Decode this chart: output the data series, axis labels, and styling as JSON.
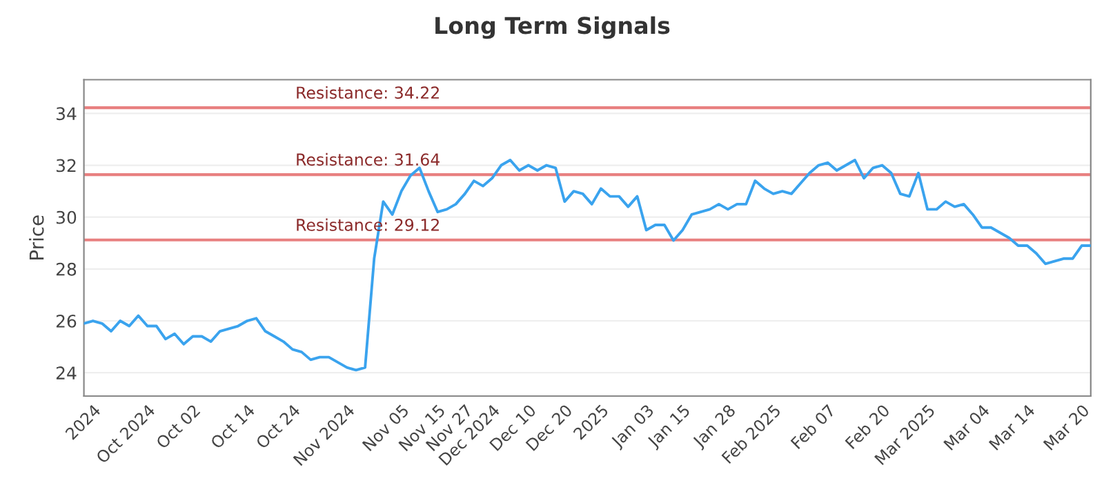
{
  "chart_data": {
    "type": "line",
    "title": "Long Term Signals",
    "ylabel": "Price",
    "categories": [
      null,
      "2024",
      null,
      null,
      null,
      null,
      null,
      "Oct 2024",
      null,
      null,
      null,
      null,
      "Oct 02",
      null,
      null,
      null,
      null,
      null,
      "Oct 14",
      null,
      null,
      null,
      null,
      "Oct 24",
      null,
      null,
      null,
      null,
      null,
      "Nov 2024",
      null,
      null,
      null,
      null,
      null,
      "Nov 05",
      null,
      null,
      null,
      "Nov 15",
      null,
      null,
      "Nov 27",
      null,
      null,
      "Dec 2024",
      null,
      null,
      null,
      "Dec 10",
      null,
      null,
      null,
      "Dec 20",
      null,
      null,
      null,
      "2025",
      null,
      null,
      null,
      null,
      "Jan 03",
      null,
      null,
      null,
      "Jan 15",
      null,
      null,
      null,
      null,
      "Jan 28",
      null,
      null,
      null,
      null,
      "Feb 2025",
      null,
      null,
      null,
      null,
      null,
      "Feb 07",
      null,
      null,
      null,
      null,
      null,
      "Feb 20",
      null,
      null,
      null,
      null,
      "Mar 2025",
      null,
      null,
      null,
      null,
      null,
      "Mar 04",
      null,
      null,
      null,
      null,
      "Mar 14",
      null,
      null,
      null,
      null,
      null,
      "Mar 20",
      null
    ],
    "series": [
      {
        "color": "#3aa3ee",
        "values": [
          25.9,
          26.0,
          25.9,
          25.6,
          26.0,
          25.8,
          26.2,
          25.8,
          25.8,
          25.3,
          25.5,
          25.1,
          25.4,
          25.4,
          25.2,
          25.6,
          25.7,
          25.8,
          26.0,
          26.1,
          25.6,
          25.4,
          25.2,
          24.9,
          24.8,
          24.5,
          24.6,
          24.6,
          24.4,
          24.2,
          24.1,
          24.2,
          28.4,
          30.6,
          30.1,
          31.0,
          31.6,
          31.9,
          31.0,
          30.2,
          30.3,
          30.5,
          30.9,
          31.4,
          31.2,
          31.5,
          32.0,
          32.2,
          31.8,
          32.0,
          31.8,
          32.0,
          31.9,
          30.6,
          31.0,
          30.9,
          30.5,
          31.1,
          30.8,
          30.8,
          30.4,
          30.8,
          29.5,
          29.7,
          29.7,
          29.1,
          29.5,
          30.1,
          30.2,
          30.3,
          30.5,
          30.3,
          30.5,
          30.5,
          31.4,
          31.1,
          30.9,
          31.0,
          30.9,
          31.3,
          31.7,
          32.0,
          32.1,
          31.8,
          32.0,
          32.2,
          31.5,
          31.9,
          32.0,
          31.7,
          30.9,
          30.8,
          31.7,
          30.3,
          30.3,
          30.6,
          30.4,
          30.5,
          30.1,
          29.6,
          29.6,
          29.4,
          29.2,
          28.9,
          28.9,
          28.6,
          28.2,
          28.3,
          28.4,
          28.4,
          28.9,
          28.9
        ]
      }
    ],
    "ylim": [
      23.1,
      35.3
    ],
    "yticks": [
      24,
      26,
      28,
      30,
      32,
      34
    ],
    "ref_lines": [
      {
        "axis": "y",
        "value": 34.22,
        "label": "Resistance: 34.22",
        "color": "#e88080"
      },
      {
        "axis": "y",
        "value": 31.64,
        "label": "Resistance: 31.64",
        "color": "#e88080"
      },
      {
        "axis": "y",
        "value": 29.12,
        "label": "Resistance: 29.12",
        "color": "#e88080"
      }
    ],
    "grid": "y",
    "legend": false,
    "marker": "none",
    "line_style": "solid"
  }
}
